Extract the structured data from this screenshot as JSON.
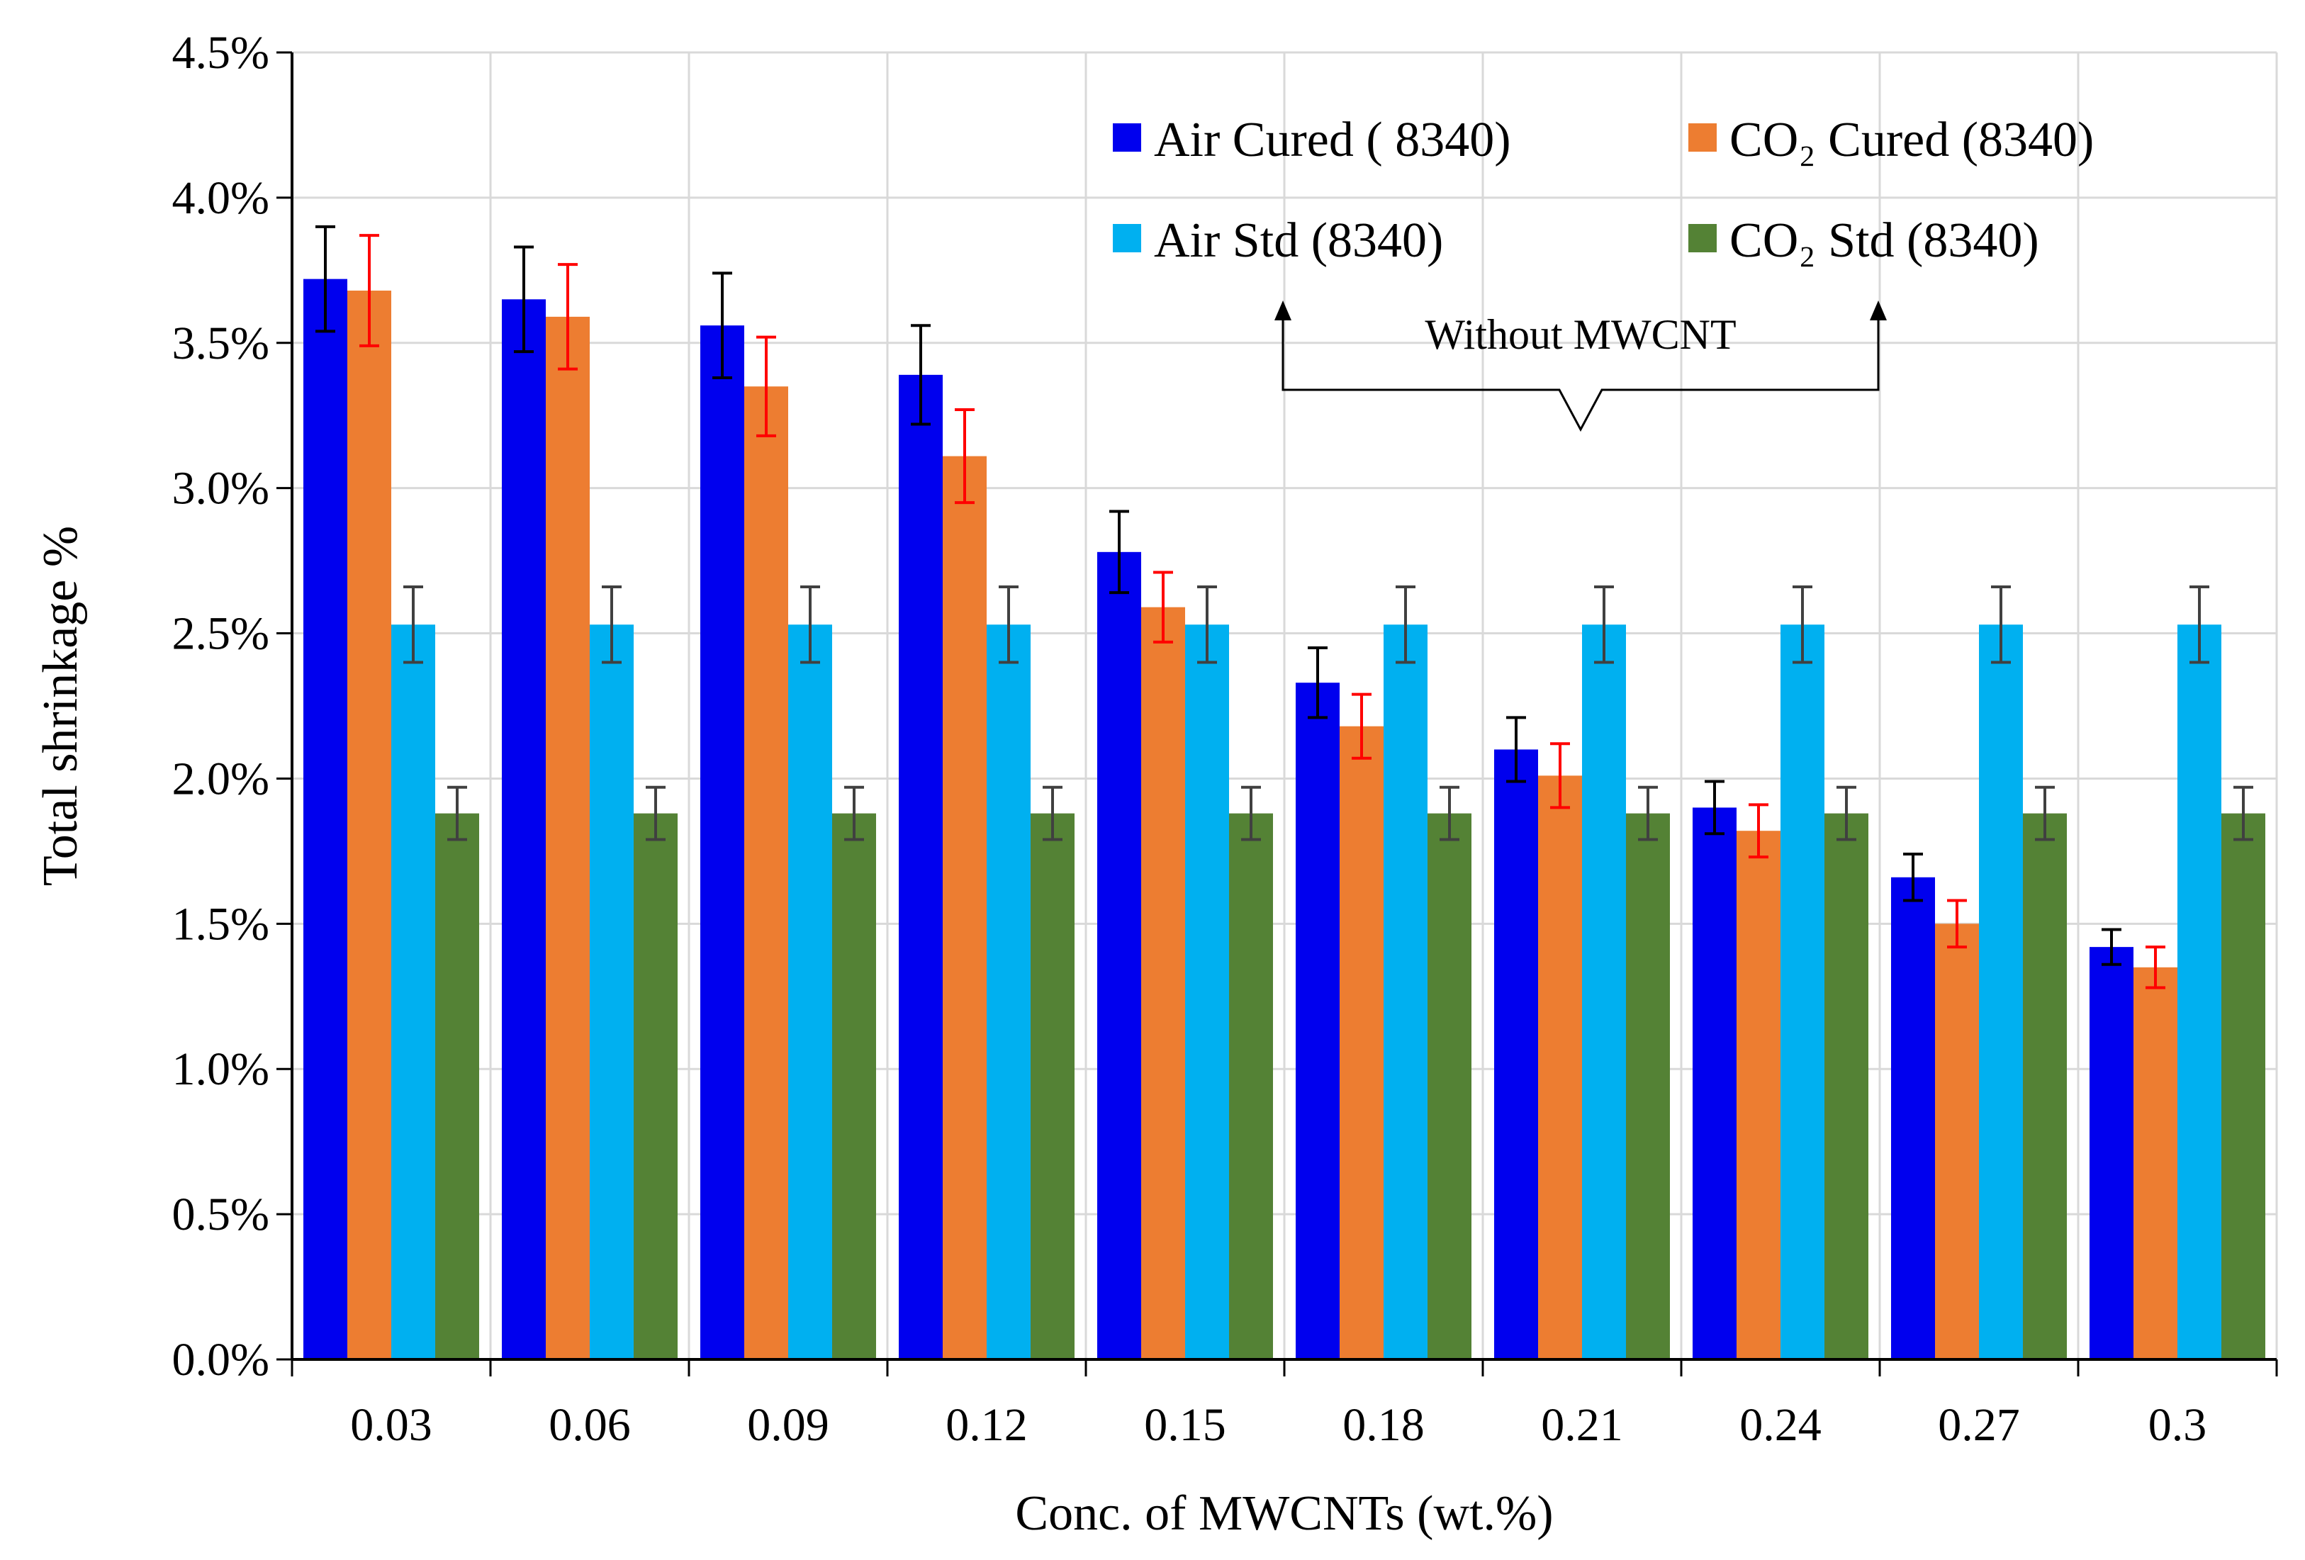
{
  "chart_data": {
    "type": "bar",
    "xlabel": "Conc. of MWCNTs  (wt.%)",
    "ylabel": "Total shrinkage %",
    "categories": [
      "0.03",
      "0.06",
      "0.09",
      "0.12",
      "0.15",
      "0.18",
      "0.21",
      "0.24",
      "0.27",
      "0.3"
    ],
    "ylim": [
      0,
      4.5
    ],
    "yticks": [
      "0.0%",
      "0.5%",
      "1.0%",
      "1.5%",
      "2.0%",
      "2.5%",
      "3.0%",
      "3.5%",
      "4.0%",
      "4.5%"
    ],
    "grid": true,
    "legend_position": "top-right",
    "series": [
      {
        "name": "Air Cured ( 8340)",
        "color": "#0000ee",
        "error_color": "#000000",
        "values": [
          3.72,
          3.65,
          3.56,
          3.39,
          2.78,
          2.33,
          2.1,
          1.9,
          1.66,
          1.42
        ],
        "errors": [
          0.18,
          0.18,
          0.18,
          0.17,
          0.14,
          0.12,
          0.11,
          0.09,
          0.08,
          0.06
        ]
      },
      {
        "name": "CO₂ Cured (8340)",
        "color": "#ed7d31",
        "error_color": "#ff0000",
        "values": [
          3.68,
          3.59,
          3.35,
          3.11,
          2.59,
          2.18,
          2.01,
          1.82,
          1.5,
          1.35
        ],
        "errors": [
          0.19,
          0.18,
          0.17,
          0.16,
          0.12,
          0.11,
          0.11,
          0.09,
          0.08,
          0.07
        ]
      },
      {
        "name": "Air Std (8340)",
        "color": "#00b0f0",
        "error_color": "#404040",
        "values": [
          2.53,
          2.53,
          2.53,
          2.53,
          2.53,
          2.53,
          2.53,
          2.53,
          2.53,
          2.53
        ],
        "errors": [
          0.13,
          0.13,
          0.13,
          0.13,
          0.13,
          0.13,
          0.13,
          0.13,
          0.13,
          0.13
        ]
      },
      {
        "name": "CO₂ Std (8340)",
        "color": "#548235",
        "error_color": "#404040",
        "values": [
          1.88,
          1.88,
          1.88,
          1.88,
          1.88,
          1.88,
          1.88,
          1.88,
          1.88,
          1.88
        ],
        "errors": [
          0.09,
          0.09,
          0.09,
          0.09,
          0.09,
          0.09,
          0.09,
          0.09,
          0.09,
          0.09
        ]
      }
    ],
    "annotation": {
      "text": "Without MWCNT"
    }
  }
}
